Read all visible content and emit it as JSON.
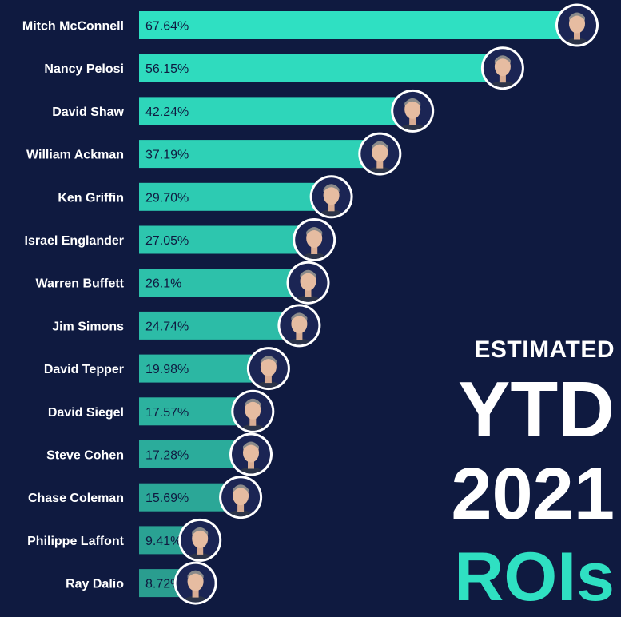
{
  "chart_data": {
    "type": "bar",
    "orientation": "horizontal",
    "categories": [
      "Mitch McConnell",
      "Nancy Pelosi",
      "David Shaw",
      "William Ackman",
      "Ken Griffin",
      "Israel Englander",
      "Warren Buffett",
      "Jim Simons",
      "David Tepper",
      "David Siegel",
      "Steve Cohen",
      "Chase Coleman",
      "Philippe Laffont",
      "Ray Dalio"
    ],
    "values": [
      67.64,
      56.15,
      42.24,
      37.19,
      29.7,
      27.05,
      26.1,
      24.74,
      19.98,
      17.57,
      17.28,
      15.69,
      9.41,
      8.72
    ],
    "value_labels": [
      "67.64%",
      "56.15%",
      "42.24%",
      "37.19%",
      "29.70%",
      "27.05%",
      "26.1%",
      "24.74%",
      "19.98%",
      "17.57%",
      "17.28%",
      "15.69%",
      "9.41%",
      "8.72%"
    ],
    "title": "",
    "xlabel": "",
    "ylabel": "",
    "grid": false,
    "legend": "none",
    "colors": {
      "background": "#0f1a40",
      "bar_high": "#2fe0c2",
      "bar_low": "#2a9d8f",
      "label": "#ffffff",
      "value_text": "#0f1a40"
    },
    "marker_icon": "person-avatar-icon"
  },
  "side_title": {
    "line1": "ESTIMATED",
    "line2": "YTD",
    "line3": "2021",
    "line4": "ROIs"
  }
}
